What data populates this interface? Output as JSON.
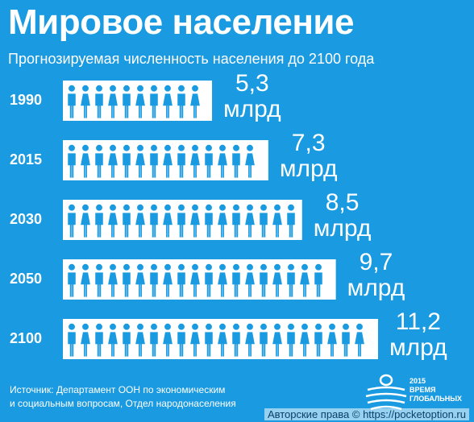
{
  "title": "Мировое население",
  "subtitle": "Прогнозируемая численность населения до 2100 года",
  "chart_data": {
    "type": "bar",
    "categories": [
      "1990",
      "2015",
      "2030",
      "2050",
      "2100"
    ],
    "values": [
      5.3,
      7.3,
      8.5,
      9.7,
      11.2
    ],
    "value_labels": [
      "5,3",
      "7,3",
      "8,5",
      "9,7",
      "11,2"
    ],
    "unit": "млрд",
    "title": "Мировое население",
    "subtitle": "Прогнозируемая численность населения до 2100 года",
    "xlabel": "",
    "ylabel": "",
    "grid": false,
    "legend": "none",
    "colors": {
      "background": "#1a9ae0",
      "bar": "#ffffff",
      "figure": "#1a9ae0"
    }
  },
  "source": {
    "line1": "Источник: Департамент ООН по экономическим",
    "line2": "и социальным вопросам, Отдел народонаселения"
  },
  "logo": {
    "line1": "2015",
    "line2": "ВРЕМЯ",
    "line3": "ГЛОБАЛЬНЫХ"
  },
  "watermark": "Авторские права © https://pocketoption.ru"
}
